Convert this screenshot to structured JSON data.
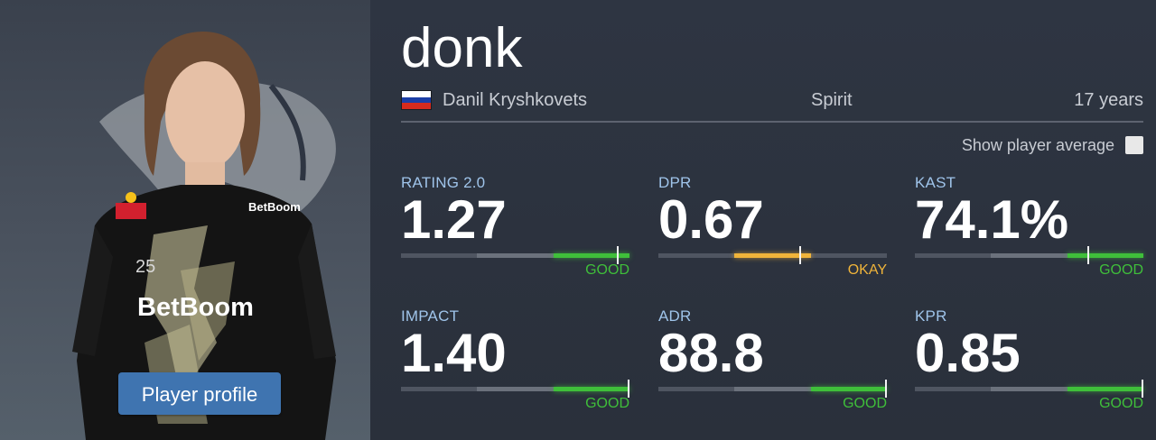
{
  "player": {
    "nickname": "donk",
    "real_name": "Danil Kryshkovets",
    "team": "Spirit",
    "age": "17 years",
    "country": "Russia",
    "flag_colors": [
      "#ffffff",
      "#1c3fa6",
      "#d52b1e"
    ],
    "jersey_texts": [
      "BetBoom",
      "BetBoom",
      "25"
    ],
    "profile_button_label": "Player profile"
  },
  "toggle": {
    "label": "Show player average",
    "checked": false
  },
  "stats": [
    {
      "label": "RATING 2.0",
      "value": "1.27",
      "rating": "GOOD",
      "level": 0.95
    },
    {
      "label": "DPR",
      "value": "0.67",
      "rating": "OKAY",
      "level": 0.62
    },
    {
      "label": "KAST",
      "value": "74.1%",
      "rating": "GOOD",
      "level": 0.76
    },
    {
      "label": "IMPACT",
      "value": "1.40",
      "rating": "GOOD",
      "level": 1.0
    },
    {
      "label": "ADR",
      "value": "88.8",
      "rating": "GOOD",
      "level": 1.0
    },
    {
      "label": "KPR",
      "value": "0.85",
      "rating": "GOOD",
      "level": 1.0
    }
  ],
  "colors": {
    "good": "#3fbf3a",
    "okay": "#f0b43a",
    "label": "#9fc4ea",
    "button": "#3f74b0"
  }
}
